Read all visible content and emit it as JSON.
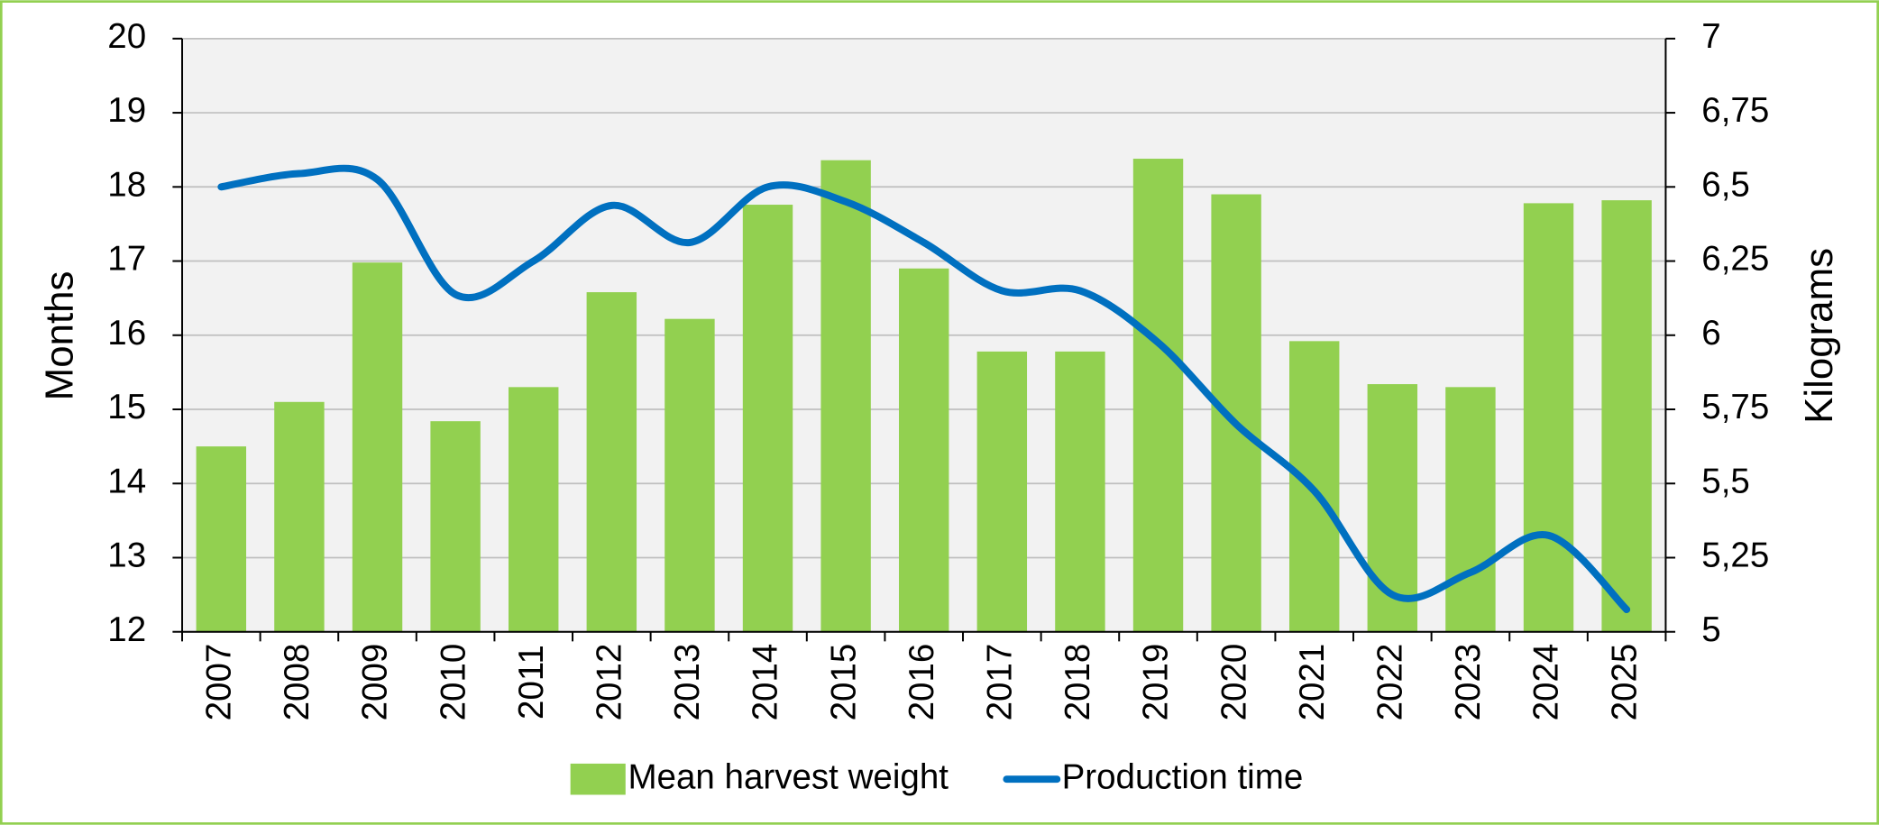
{
  "chart_data": {
    "type": "bar-line",
    "categories": [
      "2007",
      "2008",
      "2009",
      "2010",
      "2011",
      "2012",
      "2013",
      "2014",
      "2015",
      "2016",
      "2017",
      "2018",
      "2019",
      "2020",
      "2021",
      "2022",
      "2023",
      "2024",
      "2025"
    ],
    "series": [
      {
        "name": "Mean harvest weight",
        "type": "bar",
        "axis": "y2",
        "color": "#92d050",
        "values": [
          5.625,
          5.775,
          6.245,
          5.71,
          5.825,
          6.145,
          6.055,
          6.44,
          6.59,
          6.225,
          5.945,
          5.945,
          6.595,
          6.475,
          5.98,
          5.835,
          5.825,
          6.445,
          6.455
        ]
      },
      {
        "name": "Production time",
        "type": "line",
        "axis": "y",
        "color": "#0070c0",
        "values": [
          18.0,
          18.18,
          18.1,
          16.55,
          17.0,
          17.75,
          17.25,
          18.0,
          17.8,
          17.25,
          16.6,
          16.6,
          15.9,
          14.8,
          13.9,
          12.5,
          12.8,
          13.3,
          12.3
        ]
      }
    ],
    "ylabel": "Months",
    "y2label": "Kilograms",
    "ylim": [
      12,
      20
    ],
    "yticks": [
      12,
      13,
      14,
      15,
      16,
      17,
      18,
      19,
      20
    ],
    "y2lim": [
      5,
      7
    ],
    "y2ticks": [
      5,
      {
        "value": 5.25,
        "label": "5,25"
      },
      {
        "value": 5.5,
        "label": "5,5"
      },
      {
        "value": 5.75,
        "label": "5,75"
      },
      6,
      {
        "value": 6.25,
        "label": "6,25"
      },
      {
        "value": 6.5,
        "label": "6,5"
      },
      {
        "value": 6.75,
        "label": "6,75"
      },
      7
    ],
    "grid": true,
    "legend": "bottom"
  }
}
